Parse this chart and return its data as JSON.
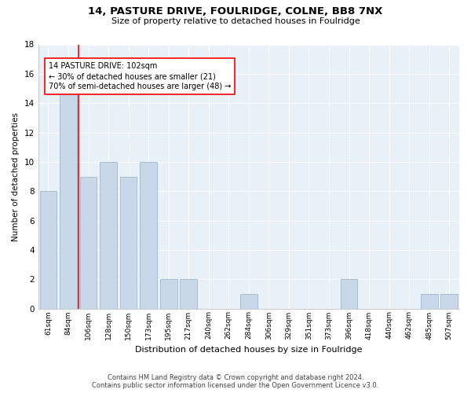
{
  "title": "14, PASTURE DRIVE, FOULRIDGE, COLNE, BB8 7NX",
  "subtitle": "Size of property relative to detached houses in Foulridge",
  "xlabel": "Distribution of detached houses by size in Foulridge",
  "ylabel": "Number of detached properties",
  "categories": [
    "61sqm",
    "84sqm",
    "106sqm",
    "128sqm",
    "150sqm",
    "173sqm",
    "195sqm",
    "217sqm",
    "240sqm",
    "262sqm",
    "284sqm",
    "306sqm",
    "329sqm",
    "351sqm",
    "373sqm",
    "396sqm",
    "418sqm",
    "440sqm",
    "462sqm",
    "485sqm",
    "507sqm"
  ],
  "values": [
    8,
    15,
    9,
    10,
    9,
    10,
    2,
    2,
    0,
    0,
    1,
    0,
    0,
    0,
    0,
    2,
    0,
    0,
    0,
    1,
    1
  ],
  "bar_color": "#c8d8e8",
  "bar_edge_color": "#a0b8cc",
  "vline_x": 1.5,
  "vline_color": "red",
  "annotation_text": "14 PASTURE DRIVE: 102sqm\n← 30% of detached houses are smaller (21)\n70% of semi-detached houses are larger (48) →",
  "annotation_box_color": "white",
  "annotation_box_edge": "red",
  "ylim": [
    0,
    18
  ],
  "yticks": [
    0,
    2,
    4,
    6,
    8,
    10,
    12,
    14,
    16,
    18
  ],
  "bg_color": "#e8f0f8",
  "footer_line1": "Contains HM Land Registry data © Crown copyright and database right 2024.",
  "footer_line2": "Contains public sector information licensed under the Open Government Licence v3.0."
}
